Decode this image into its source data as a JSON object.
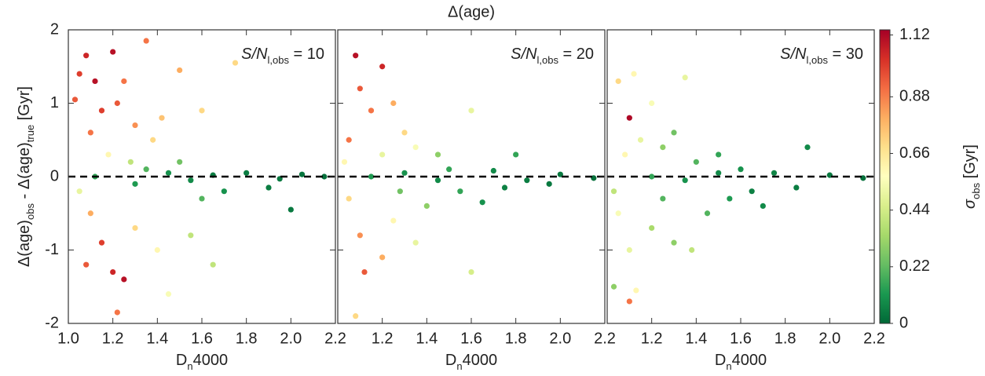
{
  "title": "Δ(age)",
  "ylabel": [
    "Δ(age)",
    "obs",
    " - Δ(age)",
    "true",
    " [Gyr]"
  ],
  "colorbar": {
    "label": [
      "σ",
      "obs",
      " [Gyr]"
    ],
    "clim": [
      0,
      1.14
    ],
    "ticks": [
      0,
      0.22,
      0.44,
      0.66,
      0.88,
      1.12
    ],
    "colormap": [
      "#006837",
      "#1a9850",
      "#66bd63",
      "#a6d96a",
      "#d9ef8b",
      "#ffffbf",
      "#fee08b",
      "#fdae61",
      "#f46d43",
      "#d73027",
      "#a50026"
    ]
  },
  "chart_data": [
    {
      "type": "scatter",
      "annotation": [
        "S/N",
        "l,obs",
        " = 10"
      ],
      "xlabel": [
        "D",
        "n",
        "4000"
      ],
      "xlim": [
        1.0,
        2.2
      ],
      "ylim": [
        -2,
        2
      ],
      "hline": 0,
      "ytick_labels": true,
      "xticks": [
        {
          "value": 1,
          "label": "1.0"
        },
        1.2,
        1.4,
        1.6,
        1.8,
        {
          "value": 2,
          "label": "2.0"
        },
        2.2
      ],
      "yticks": [
        -2,
        -1,
        0,
        1,
        2
      ],
      "x": [
        1.05,
        1.08,
        1.12,
        1.15,
        1.2,
        1.22,
        1.25,
        1.3,
        1.35,
        1.38,
        1.42,
        1.5,
        1.6,
        1.75,
        1.1,
        1.18,
        1.28,
        1.35,
        1.45,
        1.55,
        1.65,
        1.8,
        1.95,
        2.05,
        2.15,
        1.05,
        1.1,
        1.15,
        1.2,
        1.08,
        1.25,
        1.22,
        1.3,
        1.4,
        1.45,
        1.55,
        1.6,
        1.7,
        1.9,
        2.0,
        1.12,
        1.3,
        1.5,
        1.03,
        1.65
      ],
      "y": [
        1.4,
        1.65,
        1.3,
        0.9,
        1.7,
        1.0,
        1.3,
        0.7,
        1.85,
        0.5,
        0.8,
        1.45,
        0.9,
        1.55,
        0.6,
        0.3,
        0.2,
        0.1,
        0.05,
        -0.05,
        0.02,
        0.05,
        -0.03,
        0.03,
        0.0,
        -0.2,
        -0.5,
        -0.9,
        -1.3,
        -1.2,
        -1.4,
        -1.85,
        -0.7,
        -1.0,
        -1.6,
        -0.8,
        -0.3,
        -0.2,
        -0.15,
        -0.45,
        0.0,
        -0.1,
        0.2,
        1.05,
        -1.2
      ],
      "c": [
        1.0,
        1.05,
        1.1,
        1.0,
        1.1,
        0.95,
        0.9,
        0.85,
        0.9,
        0.7,
        0.75,
        0.8,
        0.7,
        0.7,
        0.9,
        0.6,
        0.4,
        0.2,
        0.1,
        0.08,
        0.05,
        0.05,
        0.04,
        0.03,
        0.02,
        0.5,
        0.8,
        1.0,
        1.05,
        0.95,
        1.1,
        0.9,
        0.7,
        0.6,
        0.55,
        0.4,
        0.2,
        0.1,
        0.05,
        0.04,
        0.15,
        0.12,
        0.25,
        0.95,
        0.4
      ]
    },
    {
      "type": "scatter",
      "annotation": [
        "S/N",
        "l,obs",
        " = 20"
      ],
      "xlabel": [
        "D",
        "n",
        "4000"
      ],
      "xlim": [
        1.0,
        2.2
      ],
      "ylim": [
        -2,
        2
      ],
      "hline": 0,
      "ytick_labels": false,
      "xticks": [
        1.2,
        1.4,
        1.6,
        1.8,
        {
          "value": 2,
          "label": "2.0"
        },
        2.2
      ],
      "yticks": [
        -2,
        -1,
        0,
        1,
        2
      ],
      "x": [
        1.08,
        1.2,
        1.1,
        1.15,
        1.25,
        1.3,
        1.35,
        1.6,
        1.45,
        1.5,
        1.7,
        1.85,
        2.0,
        2.15,
        1.03,
        1.05,
        1.1,
        1.12,
        1.08,
        1.2,
        1.25,
        1.35,
        1.4,
        1.55,
        1.65,
        1.75,
        1.95,
        1.15,
        1.3,
        1.45,
        1.6,
        1.8,
        1.2,
        1.05,
        1.28
      ],
      "y": [
        1.65,
        1.5,
        1.2,
        0.9,
        1.0,
        0.6,
        0.4,
        0.9,
        0.3,
        0.1,
        0.08,
        -0.05,
        0.03,
        -0.02,
        0.2,
        -0.3,
        -0.8,
        -1.3,
        -1.9,
        -1.1,
        -0.6,
        -0.9,
        -0.4,
        -0.2,
        -0.35,
        -0.15,
        -0.1,
        0.0,
        0.05,
        -0.05,
        -1.3,
        0.3,
        0.3,
        0.5,
        -0.2
      ],
      "c": [
        1.1,
        1.05,
        0.95,
        0.9,
        0.8,
        0.7,
        0.55,
        0.5,
        0.3,
        0.15,
        0.08,
        0.05,
        0.04,
        0.02,
        0.6,
        0.7,
        0.85,
        0.95,
        0.7,
        0.8,
        0.6,
        0.5,
        0.3,
        0.15,
        0.1,
        0.06,
        0.04,
        0.12,
        0.1,
        0.08,
        0.45,
        0.15,
        0.5,
        0.9,
        0.25
      ]
    },
    {
      "type": "scatter",
      "annotation": [
        "S/N",
        "l,obs",
        " = 30"
      ],
      "xlabel": [
        "D",
        "n",
        "4000"
      ],
      "xlim": [
        1.0,
        2.2
      ],
      "ylim": [
        -2,
        2
      ],
      "hline": 0,
      "ytick_labels": false,
      "xticks": [
        1.2,
        1.4,
        1.6,
        1.8,
        {
          "value": 2,
          "label": "2.0"
        },
        2.2
      ],
      "yticks": [
        -2,
        -1,
        0,
        1,
        2
      ],
      "x": [
        1.05,
        1.1,
        1.12,
        1.2,
        1.35,
        1.08,
        1.15,
        1.25,
        1.4,
        1.5,
        1.6,
        1.75,
        1.9,
        2.0,
        2.15,
        1.03,
        1.05,
        1.1,
        1.1,
        1.13,
        1.03,
        1.2,
        1.3,
        1.38,
        1.45,
        1.55,
        1.7,
        1.85,
        1.2,
        1.35,
        1.5,
        1.65,
        1.3,
        1.25
      ],
      "y": [
        1.3,
        0.8,
        1.4,
        1.0,
        1.35,
        0.3,
        0.5,
        0.4,
        0.2,
        0.3,
        0.1,
        0.05,
        0.4,
        0.02,
        -0.02,
        -0.2,
        -0.5,
        -1.0,
        -1.7,
        -1.55,
        -1.5,
        -0.7,
        -0.9,
        -1.0,
        -0.5,
        -0.3,
        -0.4,
        -0.15,
        0.0,
        -0.05,
        0.05,
        -0.2,
        0.6,
        -0.3
      ],
      "c": [
        0.7,
        1.12,
        0.6,
        0.55,
        0.5,
        0.6,
        0.5,
        0.3,
        0.2,
        0.15,
        0.1,
        0.07,
        0.08,
        0.04,
        0.02,
        0.4,
        0.55,
        0.5,
        0.9,
        0.6,
        0.3,
        0.35,
        0.3,
        0.4,
        0.2,
        0.12,
        0.08,
        0.05,
        0.15,
        0.1,
        0.08,
        0.06,
        0.25,
        0.2
      ]
    }
  ]
}
